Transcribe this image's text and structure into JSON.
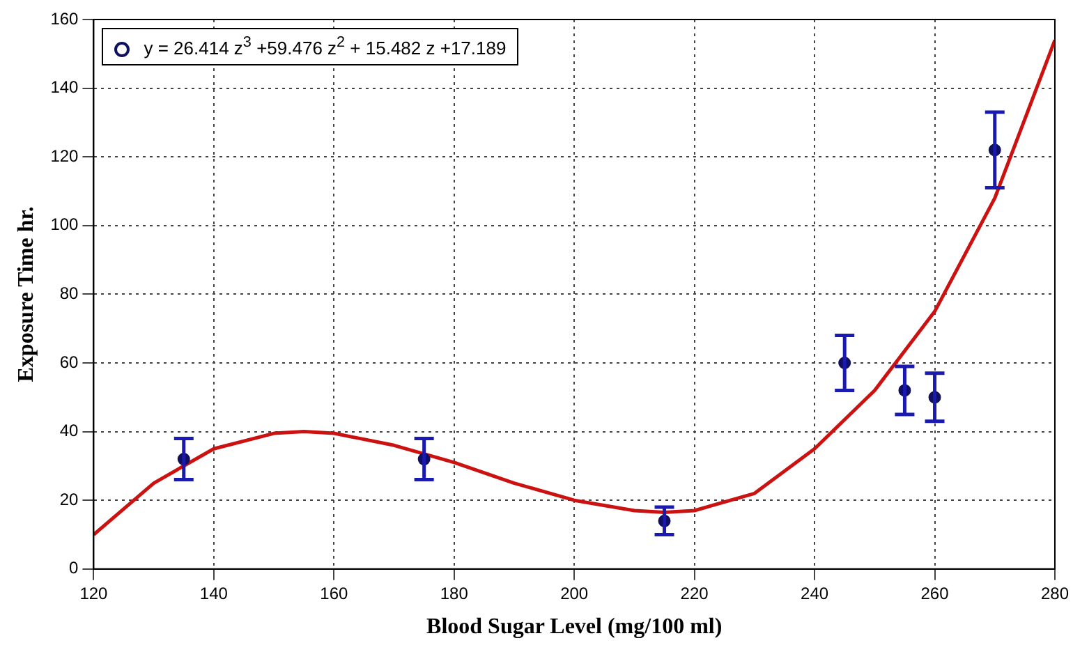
{
  "chart_data": {
    "type": "scatter",
    "xlabel": "Blood Sugar Level (mg/100 ml)",
    "ylabel": "Exposure Time hr.",
    "xlim": [
      120,
      280
    ],
    "xticks": [
      120,
      140,
      160,
      180,
      200,
      220,
      240,
      260,
      280
    ],
    "ylim": [
      0,
      160
    ],
    "yticks": [
      0,
      20,
      40,
      60,
      80,
      100,
      120,
      140,
      160
    ],
    "grid": true,
    "legend": "top left",
    "series": [
      {
        "type": "scatter",
        "marker": "circle",
        "name": "y = 26.414 z$^{3}$ +59.476 z$^{2}$ + 15.482 z +17.189",
        "color": "#101060",
        "x": [
          135,
          175,
          215,
          245,
          255,
          260,
          270
        ],
        "values": [
          32,
          32,
          14,
          60,
          52,
          50,
          122
        ],
        "errors": [
          [
            26,
            38
          ],
          [
            26,
            38
          ],
          [
            10,
            18
          ],
          [
            52,
            68
          ],
          [
            45,
            59
          ],
          [
            43,
            57
          ],
          [
            111,
            133
          ]
        ]
      },
      {
        "type": "line",
        "marker": "none",
        "color": "#cc1111",
        "x": [
          120,
          130,
          140,
          150,
          155,
          160,
          170,
          180,
          190,
          200,
          210,
          215,
          220,
          230,
          240,
          250,
          260,
          270,
          280
        ],
        "values": [
          10,
          25,
          35,
          39.5,
          40,
          39.5,
          36,
          31,
          25,
          20,
          17,
          16.5,
          17,
          22,
          35,
          52,
          75,
          108,
          154
        ]
      }
    ]
  }
}
